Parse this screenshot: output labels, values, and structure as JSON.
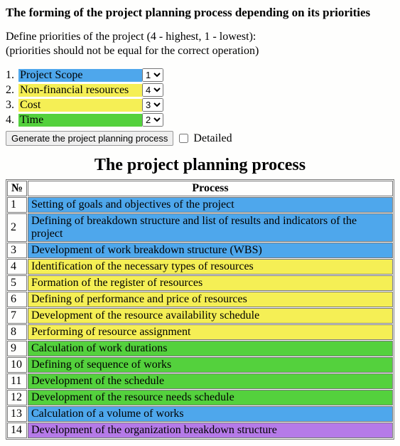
{
  "colors": {
    "blue": "#4ea7ec",
    "yellow": "#f5ef55",
    "green": "#54d13d",
    "purple": "#b57ae8"
  },
  "main_title": "The forming of the project planning process depending on its priorities",
  "instructions_line1": "Define priorities of the project (4 - highest, 1 - lowest):",
  "instructions_line2": "(priorities should not be equal for the correct operation)",
  "priorities": [
    {
      "num": "1.",
      "label": "Project Scope",
      "value": "1",
      "color": "blue"
    },
    {
      "num": "2.",
      "label": "Non-financial resources",
      "value": "4",
      "color": "yellow"
    },
    {
      "num": "3.",
      "label": "Cost",
      "value": "3",
      "color": "yellow"
    },
    {
      "num": "4.",
      "label": "Time",
      "value": "2",
      "color": "green"
    }
  ],
  "select_options": [
    "1",
    "2",
    "3",
    "4"
  ],
  "generate_button": "Generate the project planning process",
  "detailed_label": "Detailed",
  "detailed_checked": false,
  "process_title": "The project planning process",
  "table_headers": {
    "num": "№",
    "process": "Process"
  },
  "process_rows": [
    {
      "n": "1",
      "text": "Setting of goals and objectives of the project",
      "color": "blue"
    },
    {
      "n": "2",
      "text": "Defining of breakdown structure and list of results and indicators of the project",
      "color": "blue"
    },
    {
      "n": "3",
      "text": "Development of work breakdown structure (WBS)",
      "color": "blue"
    },
    {
      "n": "4",
      "text": "Identification of the necessary types of resources",
      "color": "yellow"
    },
    {
      "n": "5",
      "text": "Formation of the register of resources",
      "color": "yellow"
    },
    {
      "n": "6",
      "text": "Defining of performance and price of resources",
      "color": "yellow"
    },
    {
      "n": "7",
      "text": "Development of the resource availability schedule",
      "color": "yellow"
    },
    {
      "n": "8",
      "text": "Performing of resource assignment",
      "color": "yellow"
    },
    {
      "n": "9",
      "text": "Calculation of work durations",
      "color": "green"
    },
    {
      "n": "10",
      "text": "Defining of sequence of works",
      "color": "green"
    },
    {
      "n": "11",
      "text": "Development of the schedule",
      "color": "green"
    },
    {
      "n": "12",
      "text": "Development of the resource needs schedule",
      "color": "green"
    },
    {
      "n": "13",
      "text": "Calculation of a volume of works",
      "color": "blue"
    },
    {
      "n": "14",
      "text": "Development of the organization breakdown structure",
      "color": "purple"
    }
  ]
}
